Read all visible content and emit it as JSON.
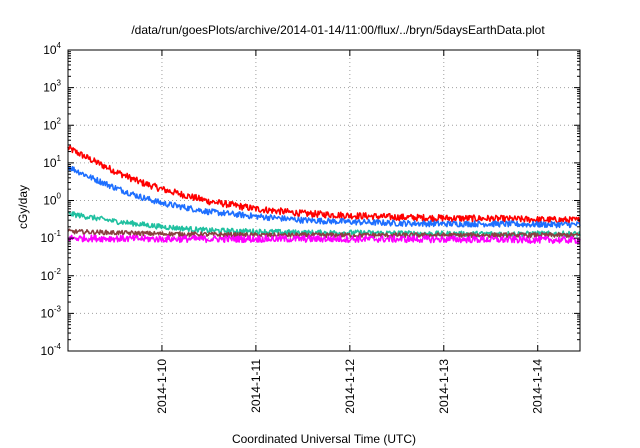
{
  "chart_data": {
    "type": "line",
    "title": "/data/run/goesPlots/archive/2014-01-14/11:00/flux/../bryn/5daysEarthData.plot",
    "xlabel": "Coordinated Universal Time (UTC)",
    "ylabel": "cGy/day",
    "yscale": "log",
    "ylim": [
      0.0001,
      10000
    ],
    "xlim": [
      0,
      5.45
    ],
    "y_ticks": [
      {
        "value": 0.0001,
        "base": "10",
        "exp": "-4"
      },
      {
        "value": 0.001,
        "base": "10",
        "exp": "-3"
      },
      {
        "value": 0.01,
        "base": "10",
        "exp": "-2"
      },
      {
        "value": 0.1,
        "base": "10",
        "exp": "-1"
      },
      {
        "value": 1,
        "base": "10",
        "exp": "0"
      },
      {
        "value": 10,
        "base": "10",
        "exp": "1"
      },
      {
        "value": 100,
        "base": "10",
        "exp": "2"
      },
      {
        "value": 1000,
        "base": "10",
        "exp": "3"
      },
      {
        "value": 10000,
        "base": "10",
        "exp": "4"
      }
    ],
    "x_ticks": [
      {
        "value": 1,
        "label": "2014-1-10"
      },
      {
        "value": 2,
        "label": "2014-1-11"
      },
      {
        "value": 3,
        "label": "2014-1-12"
      },
      {
        "value": 4,
        "label": "2014-1-13"
      },
      {
        "value": 5,
        "label": "2014-1-14"
      }
    ],
    "grid": true,
    "legend": "none",
    "series": [
      {
        "color": "#ff0000",
        "x": [
          0,
          0.25,
          0.5,
          0.75,
          1.0,
          1.5,
          2.0,
          2.5,
          3.0,
          3.5,
          4.0,
          4.5,
          5.0,
          5.45
        ],
        "y": [
          25,
          12,
          6,
          3.2,
          2.0,
          0.95,
          0.6,
          0.45,
          0.4,
          0.36,
          0.34,
          0.33,
          0.31,
          0.3
        ]
      },
      {
        "color": "#1e6fff",
        "x": [
          0,
          0.25,
          0.5,
          0.75,
          1.0,
          1.5,
          2.0,
          2.5,
          3.0,
          3.5,
          4.0,
          4.5,
          5.0,
          5.45
        ],
        "y": [
          8,
          4,
          2.2,
          1.3,
          0.85,
          0.5,
          0.38,
          0.3,
          0.27,
          0.25,
          0.24,
          0.24,
          0.23,
          0.23
        ]
      },
      {
        "color": "#20c0a0",
        "x": [
          0,
          0.5,
          1.0,
          1.5,
          2.0,
          2.5,
          3.0,
          4.0,
          5.0,
          5.45
        ],
        "y": [
          0.45,
          0.28,
          0.2,
          0.16,
          0.15,
          0.14,
          0.14,
          0.13,
          0.13,
          0.13
        ]
      },
      {
        "color": "#8a4040",
        "x": [
          0,
          1.0,
          2.0,
          3.0,
          4.0,
          5.0,
          5.45
        ],
        "y": [
          0.15,
          0.13,
          0.12,
          0.12,
          0.12,
          0.12,
          0.12
        ]
      },
      {
        "color": "#ff00ff",
        "x": [
          0,
          1.0,
          2.0,
          3.0,
          4.0,
          5.0,
          5.45
        ],
        "y": [
          0.1,
          0.095,
          0.095,
          0.095,
          0.093,
          0.09,
          0.088
        ]
      }
    ]
  }
}
